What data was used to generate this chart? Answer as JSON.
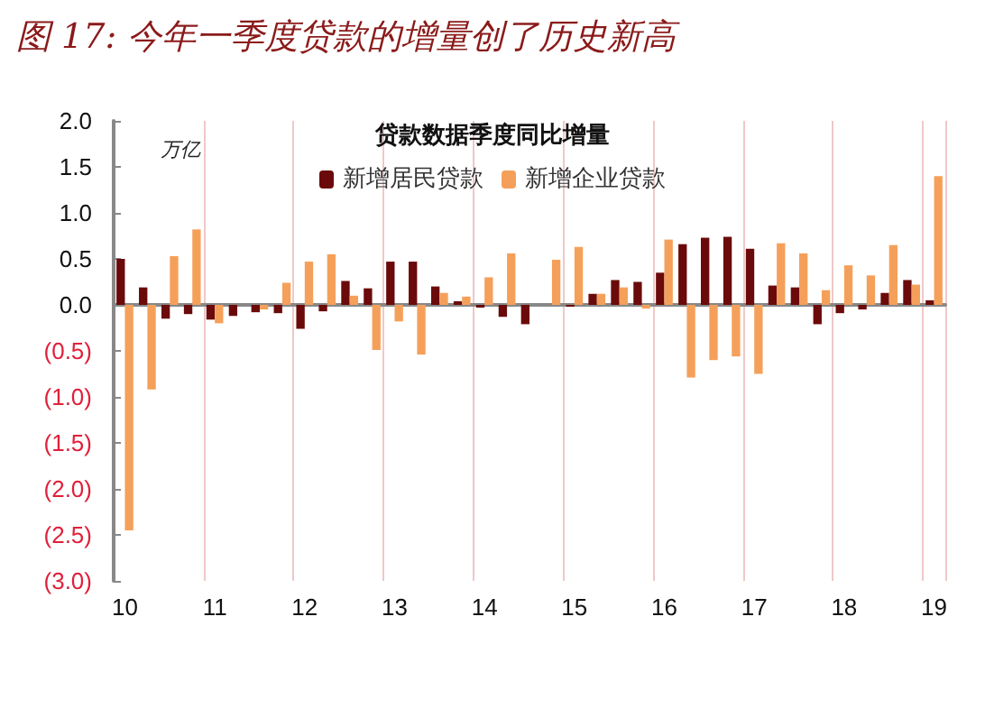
{
  "chart_data": {
    "type": "bar",
    "title": "图 17: 今年一季度贷款的增量创了历史新高",
    "subtitle": "贷款数据季度同比增量",
    "ylabel": "万亿",
    "categories": [
      "10",
      null,
      null,
      null,
      "11",
      null,
      null,
      null,
      "12",
      null,
      null,
      null,
      "13",
      null,
      null,
      null,
      "14",
      null,
      null,
      null,
      "15",
      null,
      null,
      null,
      "16",
      null,
      null,
      null,
      "17",
      null,
      null,
      null,
      "18",
      null,
      null,
      null,
      "19"
    ],
    "series": [
      {
        "name": "新增居民贷款",
        "color": "#6b0a0a",
        "values": [
          0.5,
          0.19,
          -0.15,
          -0.1,
          -0.16,
          -0.12,
          -0.08,
          -0.09,
          -0.26,
          -0.07,
          0.26,
          0.18,
          0.47,
          0.47,
          0.2,
          0.04,
          -0.03,
          -0.13,
          -0.21,
          0,
          -0.02,
          0.12,
          0.27,
          0.25,
          0.35,
          0.66,
          0.73,
          0.74,
          0.61,
          0.21,
          0.19,
          -0.21,
          -0.09,
          -0.05,
          0.13,
          0.27,
          0.05
        ]
      },
      {
        "name": "新增企业贷款",
        "color": "#f5a05a",
        "values": [
          -2.45,
          -0.92,
          0.53,
          0.82,
          -0.2,
          0,
          -0.05,
          0.24,
          0.47,
          0.55,
          0.1,
          -0.49,
          -0.18,
          -0.54,
          0.13,
          0.09,
          0.3,
          0.56,
          0,
          0.49,
          0.63,
          0.12,
          0.19,
          -0.04,
          0.71,
          -0.79,
          -0.6,
          -0.56,
          -0.75,
          0.67,
          0.56,
          0.16,
          0.43,
          0.32,
          0.65,
          0.22,
          1.4
        ]
      }
    ],
    "ylim": [
      -3,
      2
    ],
    "yticks": [
      {
        "value": -3,
        "label": "(3.0)"
      },
      {
        "value": -2.5,
        "label": "(2.5)"
      },
      {
        "value": -2,
        "label": "(2.0)"
      },
      {
        "value": -1.5,
        "label": "(1.5)"
      },
      {
        "value": -1,
        "label": "(1.0)"
      },
      {
        "value": -0.5,
        "label": "(0.5)"
      },
      {
        "value": 0,
        "label": "0.0"
      },
      {
        "value": 0.5,
        "label": "0.5"
      },
      {
        "value": 1,
        "label": "1.0"
      },
      {
        "value": 1.5,
        "label": "1.5"
      },
      {
        "value": 2,
        "label": "2.0"
      }
    ],
    "grid": "x",
    "legend": "top"
  }
}
